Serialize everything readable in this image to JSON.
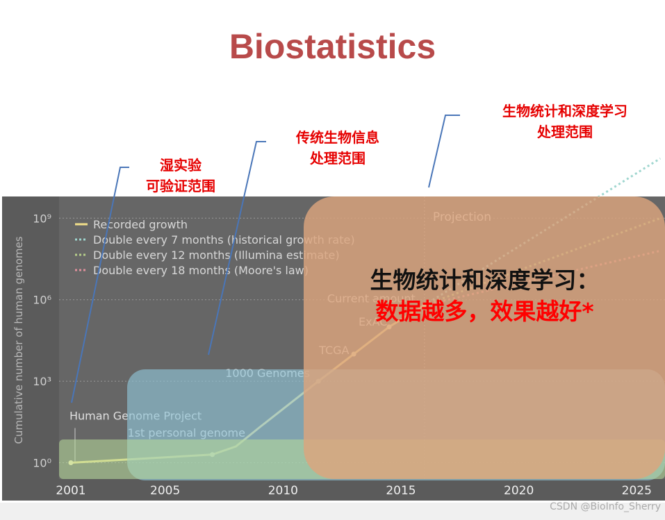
{
  "title": "Biostatistics",
  "annotations": {
    "wet_lab": [
      "湿实验",
      "可验证范围"
    ],
    "traditional": [
      "传统生物信息",
      "处理范围"
    ],
    "deep": [
      "生物统计和深度学习",
      "处理范围"
    ]
  },
  "overlay": {
    "line1": "生物统计和深度学习：",
    "line2": "数据越多，效果越好*"
  },
  "watermark": "CSDN @BioInfo_Sherry",
  "colors": {
    "title": "#b84a4a",
    "annotation": "#e60000",
    "chart_bg": "#5a5a5a",
    "recorded": "#f2e08a",
    "seven_months": "#9fd6cf",
    "twelve_months": "#b7cf8a",
    "eighteen_months": "#e0909c",
    "blue_box": "#8fc3d6",
    "green_box": "#b8dd9a",
    "orange_box": "#d9a37c"
  },
  "chart_data": {
    "type": "line",
    "ylabel": "Cumulative number of human genomes",
    "x_ticks": [
      "2001",
      "2005",
      "2010",
      "2015",
      "2020",
      "2025"
    ],
    "y_ticks": [
      "10⁰",
      "10³",
      "10⁶",
      "10⁹"
    ],
    "xlim": [
      2000.5,
      2026.2
    ],
    "ylim_log10": [
      -0.6,
      9.8
    ],
    "log_scale": true,
    "grid": true,
    "legend_position": "top-left",
    "projection_label": "Projection",
    "projection_start": 2016,
    "series": [
      {
        "name": "Recorded growth",
        "style": "solid",
        "x": [
          2001,
          2007,
          2008,
          2009,
          2011.5,
          2013,
          2014.5,
          2016
        ],
        "y_log10": [
          0,
          0.3,
          0.6,
          1.3,
          3.0,
          4.0,
          5.0,
          5.8
        ]
      },
      {
        "name": "Double every 7 months (historical growth rate)",
        "style": "dotted",
        "x": [
          2016,
          2026
        ],
        "y_log10": [
          5.8,
          11.2
        ]
      },
      {
        "name": "Double every 12 months (Illumina estimate)",
        "style": "dotted",
        "x": [
          2016,
          2026
        ],
        "y_log10": [
          5.8,
          9.0
        ]
      },
      {
        "name": "Double every 18 months (Moore's law)",
        "style": "dotted",
        "x": [
          2016,
          2026
        ],
        "y_log10": [
          5.8,
          7.8
        ]
      }
    ],
    "milestones": [
      {
        "label": "Human Genome Project",
        "x": 2001,
        "y_log10": 0
      },
      {
        "label": "1st personal genome",
        "x": 2007,
        "y_log10": 0.3
      },
      {
        "label": "1000 Genomes",
        "x": 2011.5,
        "y_log10": 3.0
      },
      {
        "label": "TCGA",
        "x": 2013,
        "y_log10": 4.0
      },
      {
        "label": "ExAC",
        "x": 2014.5,
        "y_log10": 5.0
      },
      {
        "label": "Current amount",
        "x": 2016,
        "y_log10": 5.8
      }
    ]
  }
}
